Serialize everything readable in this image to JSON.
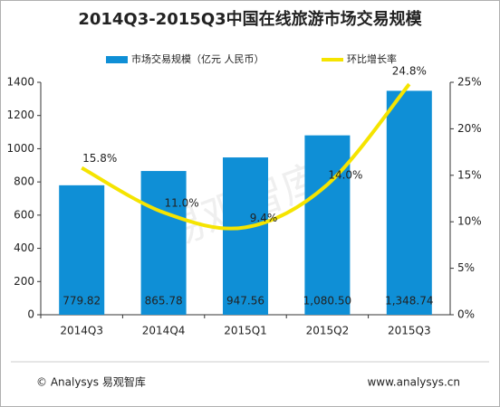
{
  "chart_data": {
    "type": "bar_line",
    "title": "2014Q3-2015Q3中国在线旅游市场交易规模",
    "categories": [
      "2014Q3",
      "2014Q4",
      "2015Q1",
      "2015Q2",
      "2015Q3"
    ],
    "series": [
      {
        "name": "市场交易规模（亿元 人民币）",
        "color": "#0f8fd6",
        "type": "bar",
        "values": [
          779.82,
          865.78,
          947.56,
          1080.5,
          1348.74
        ],
        "value_labels": [
          "779.82",
          "865.78",
          "947.56",
          "1,080.50",
          "1,348.74"
        ]
      },
      {
        "name": "环比增长率",
        "color": "#f5e400",
        "type": "line",
        "axis": "y2",
        "values": [
          15.8,
          11.0,
          9.4,
          14.0,
          24.8
        ],
        "value_labels": [
          "15.8%",
          "11.0%",
          "9.4%",
          "14.0%",
          "24.8%"
        ]
      }
    ],
    "ylim": [
      0,
      1400
    ],
    "yticks": [
      0,
      200,
      400,
      600,
      800,
      1000,
      1200,
      1400
    ],
    "y2lim": [
      0,
      25
    ],
    "y2ticks": [
      {
        "value": 0,
        "label": "0%"
      },
      {
        "value": 5,
        "label": "5%"
      },
      {
        "value": 10,
        "label": "10%"
      },
      {
        "value": 15,
        "label": "15%"
      },
      {
        "value": 20,
        "label": "20%"
      },
      {
        "value": 25,
        "label": "25%"
      }
    ],
    "legend": "top",
    "watermark": "易观智库",
    "footer_left": "© Analysys 易观智库",
    "footer_right": "www.analysys.cn"
  }
}
